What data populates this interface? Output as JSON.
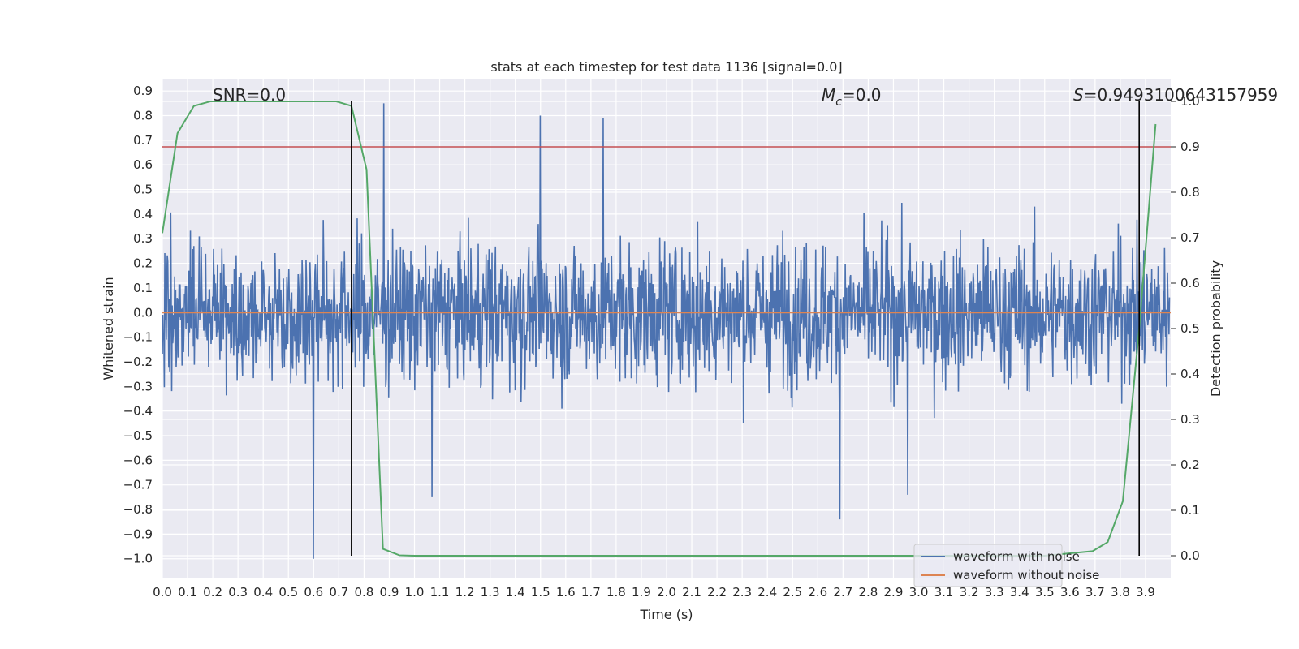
{
  "chart_data": {
    "type": "line",
    "title": "stats at each timestep for test data 1136 [signal=0.0]",
    "xlabel": "Time (s)",
    "ylabel_left": "Whitened strain",
    "ylabel_right": "Detection probability",
    "xlim": [
      0.0,
      4.0
    ],
    "ylim_left": [
      -1.08,
      0.95
    ],
    "ylim_right": [
      -0.05,
      1.05
    ],
    "x_ticks": [
      "0.0",
      "0.1",
      "0.2",
      "0.3",
      "0.4",
      "0.5",
      "0.6",
      "0.7",
      "0.8",
      "0.9",
      "1.0",
      "1.1",
      "1.2",
      "1.3",
      "1.4",
      "1.5",
      "1.6",
      "1.7",
      "1.8",
      "1.9",
      "2.0",
      "2.1",
      "2.2",
      "2.3",
      "2.4",
      "2.5",
      "2.6",
      "2.7",
      "2.8",
      "2.9",
      "3.0",
      "3.1",
      "3.2",
      "3.3",
      "3.4",
      "3.5",
      "3.6",
      "3.7",
      "3.8",
      "3.9"
    ],
    "y_ticks_left": [
      "0.9",
      "0.8",
      "0.7",
      "0.6",
      "0.5",
      "0.4",
      "0.3",
      "0.2",
      "0.1",
      "0.0",
      "−0.1",
      "−0.2",
      "−0.3",
      "−0.4",
      "−0.5",
      "−0.6",
      "−0.7",
      "−0.8",
      "−0.9",
      "−1.0"
    ],
    "y_ticks_right": [
      "1.0",
      "0.9",
      "0.8",
      "0.7",
      "0.6",
      "0.5",
      "0.4",
      "0.3",
      "0.2",
      "0.1",
      "0.0"
    ],
    "grid": true,
    "legend_position": "lower-right",
    "series": [
      {
        "name": "waveform with noise",
        "axis": "left",
        "color": "#4c72b0",
        "kind": "noise",
        "n_samples": 2048,
        "typical_range": [
          -0.45,
          0.6
        ],
        "min": -1.0,
        "max": 0.85,
        "spikes": [
          {
            "x": 0.6,
            "y": -1.0
          },
          {
            "x": 0.88,
            "y": 0.85
          },
          {
            "x": 1.5,
            "y": 0.8
          },
          {
            "x": 1.75,
            "y": 0.79
          },
          {
            "x": 2.69,
            "y": -0.84
          },
          {
            "x": 1.07,
            "y": -0.75
          },
          {
            "x": 2.96,
            "y": -0.74
          }
        ]
      },
      {
        "name": "waveform without noise",
        "axis": "left",
        "color": "#dd8452",
        "x": [
          0.0,
          4.0
        ],
        "y": [
          0.0,
          0.0
        ]
      },
      {
        "name": "",
        "axis": "right",
        "color": "#55a868",
        "x": [
          0.0,
          0.06,
          0.125,
          0.19,
          0.25,
          0.5,
          0.69,
          0.75,
          0.81,
          0.875,
          0.94,
          1.0,
          3.5,
          3.69,
          3.75,
          3.81,
          3.875,
          3.94
        ],
        "y": [
          0.71,
          0.93,
          0.99,
          1.0,
          1.0,
          1.0,
          1.0,
          0.99,
          0.85,
          0.015,
          0.001,
          0.0,
          0.0,
          0.01,
          0.03,
          0.12,
          0.5,
          0.95
        ]
      }
    ],
    "hlines": [
      {
        "axis": "right",
        "y": 0.9,
        "color": "#c44e52"
      }
    ],
    "vlines": [
      {
        "x": 0.75,
        "color": "#000000"
      },
      {
        "x": 3.875,
        "color": "#000000"
      }
    ],
    "annotations": [
      {
        "id": "snr",
        "text": "SNR=0.0"
      },
      {
        "id": "mc",
        "text_main": "M",
        "text_sub": "c",
        "text_rest": "=0.0"
      },
      {
        "id": "s",
        "text_main": "S",
        "text_rest": "=0.9493100643157959"
      }
    ]
  }
}
